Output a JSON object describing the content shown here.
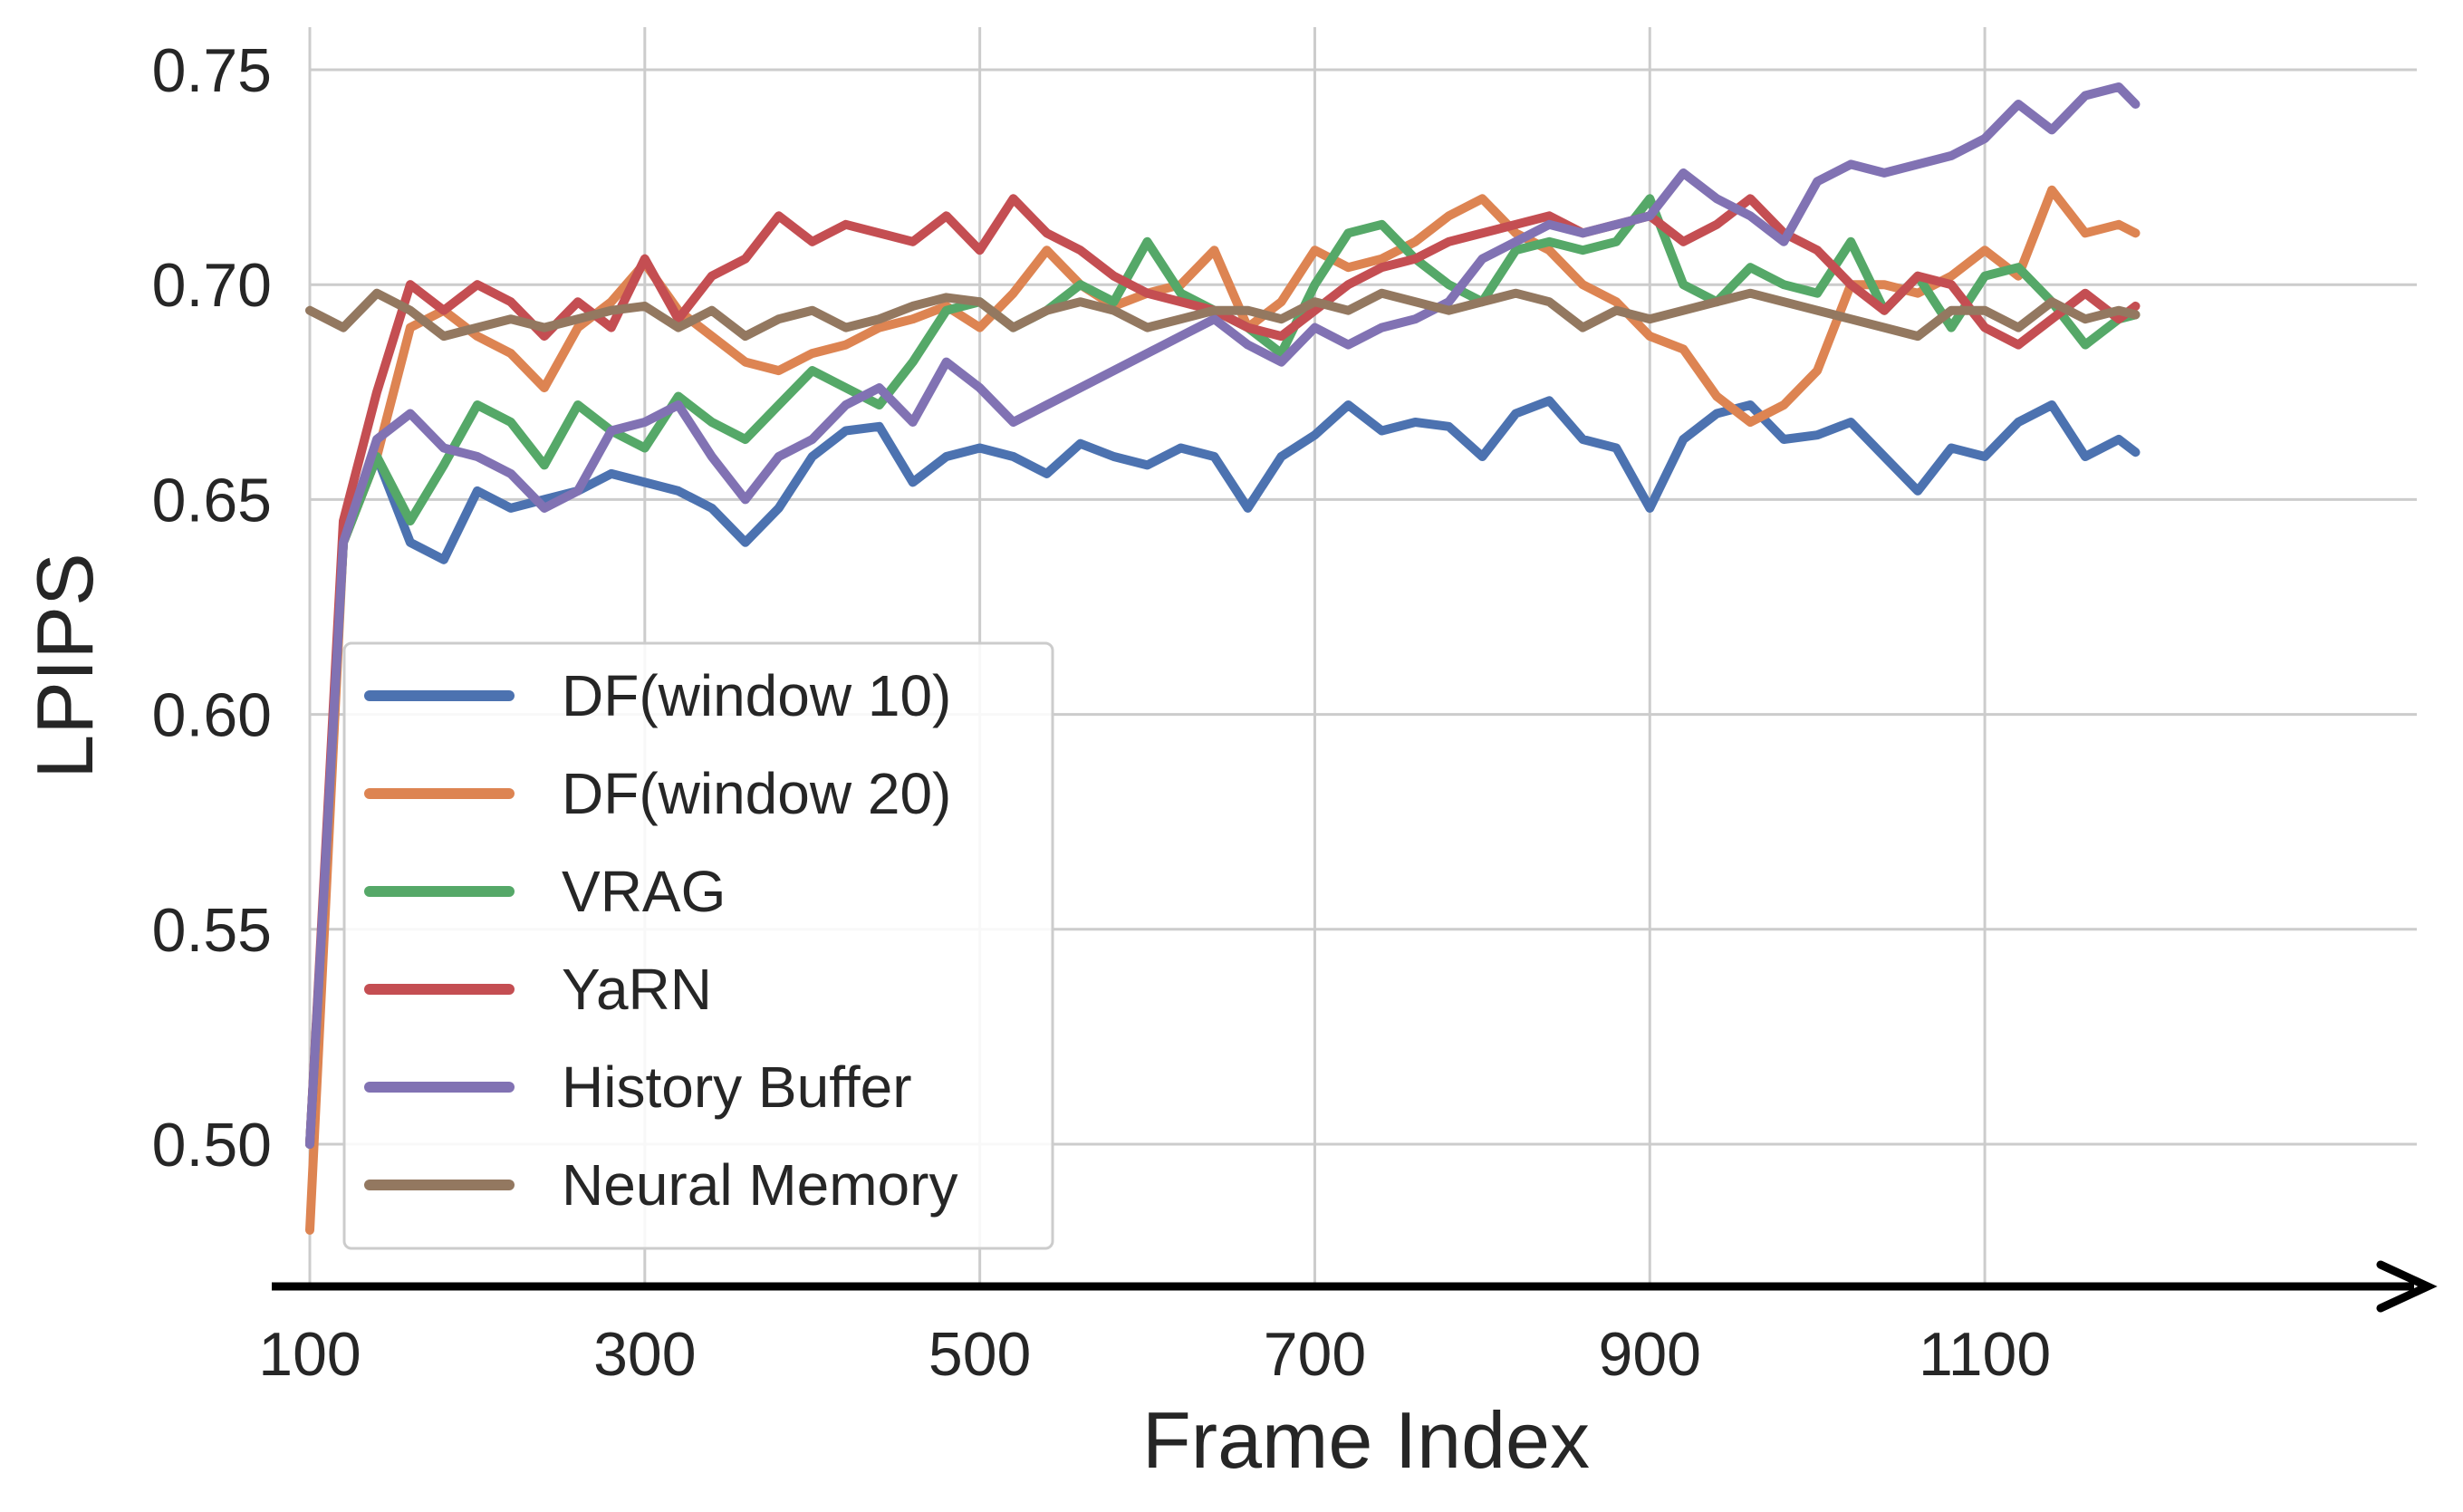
{
  "chart_data": {
    "type": "line",
    "title": "",
    "xlabel": "Frame Index",
    "ylabel": "LPIPS",
    "xlim": [
      100,
      1250
    ],
    "ylim": [
      0.4685,
      0.76
    ],
    "xticks": [
      100,
      300,
      500,
      700,
      900,
      1100
    ],
    "xtick_labels": [
      "100",
      "300",
      "500",
      "700",
      "900",
      "1100"
    ],
    "yticks": [
      0.5,
      0.55,
      0.6,
      0.65,
      0.7,
      0.75
    ],
    "ytick_labels": [
      "0.50",
      "0.55",
      "0.60",
      "0.65",
      "0.70",
      "0.75"
    ],
    "grid": true,
    "legend_position": "lower-left",
    "x_axis_arrow": true,
    "x": [
      100,
      120,
      140,
      160,
      180,
      200,
      220,
      240,
      260,
      280,
      300,
      320,
      340,
      360,
      380,
      400,
      420,
      440,
      460,
      480,
      500,
      520,
      540,
      560,
      580,
      600,
      620,
      640,
      660,
      680,
      700,
      720,
      740,
      760,
      780,
      800,
      820,
      840,
      860,
      880,
      900,
      920,
      940,
      960,
      980,
      1000,
      1020,
      1040,
      1060,
      1080,
      1100,
      1120,
      1140,
      1160,
      1180,
      1190
    ],
    "series": [
      {
        "name": "DF(window 10)",
        "color": "#4c72b0",
        "values": [
          0.5,
          0.64,
          0.66,
          0.64,
          0.636,
          0.652,
          0.648,
          0.65,
          0.652,
          0.656,
          0.654,
          0.652,
          0.648,
          0.64,
          0.648,
          0.66,
          0.666,
          0.667,
          0.654,
          0.66,
          0.662,
          0.66,
          0.656,
          0.663,
          0.66,
          0.658,
          0.662,
          0.66,
          0.648,
          0.66,
          0.665,
          0.672,
          0.666,
          0.668,
          0.667,
          0.66,
          0.67,
          0.673,
          0.664,
          0.662,
          0.648,
          0.664,
          0.67,
          0.672,
          0.664,
          0.665,
          0.668,
          0.66,
          0.652,
          0.662,
          0.66,
          0.668,
          0.672,
          0.66,
          0.664,
          0.661
        ]
      },
      {
        "name": "DF(window 20)",
        "color": "#dd8452",
        "values": [
          0.48,
          0.64,
          0.66,
          0.69,
          0.694,
          0.688,
          0.684,
          0.676,
          0.69,
          0.696,
          0.705,
          0.694,
          0.688,
          0.682,
          0.68,
          0.684,
          0.686,
          0.69,
          0.692,
          0.695,
          0.69,
          0.698,
          0.708,
          0.7,
          0.695,
          0.698,
          0.7,
          0.708,
          0.69,
          0.696,
          0.708,
          0.704,
          0.706,
          0.71,
          0.716,
          0.72,
          0.712,
          0.708,
          0.7,
          0.696,
          0.688,
          0.685,
          0.674,
          0.668,
          0.672,
          0.68,
          0.7,
          0.7,
          0.698,
          0.702,
          0.708,
          0.702,
          0.722,
          0.712,
          0.714,
          0.712
        ]
      },
      {
        "name": "VRAG",
        "color": "#55a868",
        "values": [
          0.5,
          0.64,
          0.66,
          0.645,
          0.658,
          0.672,
          0.668,
          0.658,
          0.672,
          0.666,
          0.662,
          0.674,
          0.668,
          0.664,
          0.672,
          0.68,
          0.676,
          0.672,
          0.682,
          0.694,
          0.696,
          0.69,
          0.694,
          0.7,
          0.696,
          0.71,
          0.698,
          0.694,
          0.69,
          0.684,
          0.7,
          0.712,
          0.714,
          0.706,
          0.7,
          0.696,
          0.708,
          0.71,
          0.708,
          0.71,
          0.72,
          0.7,
          0.696,
          0.704,
          0.7,
          0.698,
          0.71,
          0.694,
          0.702,
          0.69,
          0.702,
          0.704,
          0.696,
          0.686,
          0.692,
          0.693
        ]
      },
      {
        "name": "YaRN",
        "color": "#c44e52",
        "values": [
          0.5,
          0.645,
          0.675,
          0.7,
          0.694,
          0.7,
          0.696,
          0.688,
          0.696,
          0.69,
          0.706,
          0.692,
          0.702,
          0.706,
          0.716,
          0.71,
          0.714,
          0.712,
          0.71,
          0.716,
          0.708,
          0.72,
          0.712,
          0.708,
          0.702,
          0.698,
          0.696,
          0.694,
          0.69,
          0.688,
          0.694,
          0.7,
          0.704,
          0.706,
          0.71,
          0.712,
          0.714,
          0.716,
          0.712,
          0.714,
          0.716,
          0.71,
          0.714,
          0.72,
          0.712,
          0.708,
          0.7,
          0.694,
          0.702,
          0.7,
          0.69,
          0.686,
          0.692,
          0.698,
          0.692,
          0.695
        ]
      },
      {
        "name": "History Buffer",
        "color": "#8172b3",
        "values": [
          0.5,
          0.64,
          0.664,
          0.67,
          0.662,
          0.66,
          0.656,
          0.648,
          0.652,
          0.666,
          0.668,
          0.672,
          0.66,
          0.65,
          0.66,
          0.664,
          0.672,
          0.676,
          0.668,
          0.682,
          0.676,
          0.668,
          0.672,
          0.676,
          0.68,
          0.684,
          0.688,
          0.692,
          0.686,
          0.682,
          0.69,
          0.686,
          0.69,
          0.692,
          0.696,
          0.706,
          0.71,
          0.714,
          0.712,
          0.714,
          0.716,
          0.726,
          0.72,
          0.716,
          0.71,
          0.724,
          0.728,
          0.726,
          0.728,
          0.73,
          0.734,
          0.742,
          0.736,
          0.744,
          0.746,
          0.742
        ]
      },
      {
        "name": "Neural Memory",
        "color": "#937860",
        "values": [
          0.694,
          0.69,
          0.698,
          0.694,
          0.688,
          0.69,
          0.692,
          0.69,
          0.692,
          0.694,
          0.695,
          0.69,
          0.694,
          0.688,
          0.692,
          0.694,
          0.69,
          0.692,
          0.695,
          0.697,
          0.696,
          0.69,
          0.694,
          0.696,
          0.694,
          0.69,
          0.692,
          0.694,
          0.694,
          0.692,
          0.696,
          0.694,
          0.698,
          0.696,
          0.694,
          0.696,
          0.698,
          0.696,
          0.69,
          0.694,
          0.692,
          0.694,
          0.696,
          0.698,
          0.696,
          0.694,
          0.692,
          0.69,
          0.688,
          0.694,
          0.694,
          0.69,
          0.696,
          0.692,
          0.694,
          0.693
        ]
      }
    ]
  }
}
